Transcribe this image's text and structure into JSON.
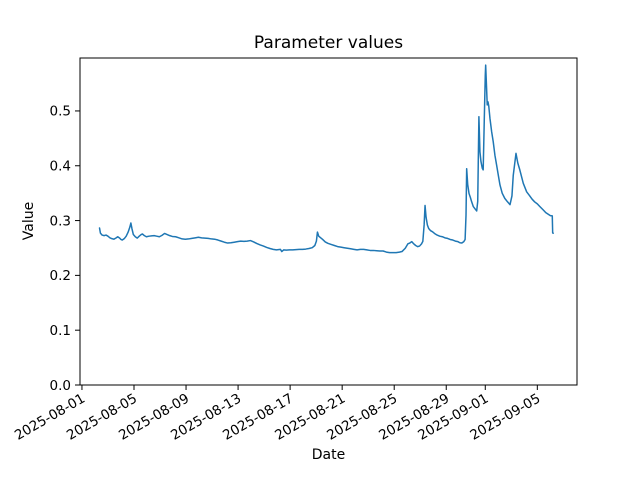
{
  "figure": {
    "title": "Parameter values",
    "xlabel": "Date",
    "ylabel": "Value"
  },
  "chart_data": {
    "type": "line",
    "title": "Parameter values",
    "xlabel": "Date",
    "ylabel": "Value",
    "grid": false,
    "legend": "none",
    "line_color": "#1f77b4",
    "line_width": 1.5,
    "x_axis": {
      "kind": "date",
      "base_date": "2025-08-01",
      "unit": "days_since_base_date",
      "lim": [
        -0.15,
        38.05
      ],
      "ticks": [
        {
          "pos": 0,
          "label": "2025-08-01"
        },
        {
          "pos": 4,
          "label": "2025-08-05"
        },
        {
          "pos": 8,
          "label": "2025-08-09"
        },
        {
          "pos": 12,
          "label": "2025-08-13"
        },
        {
          "pos": 16,
          "label": "2025-08-17"
        },
        {
          "pos": 20,
          "label": "2025-08-21"
        },
        {
          "pos": 24,
          "label": "2025-08-25"
        },
        {
          "pos": 28,
          "label": "2025-08-29"
        },
        {
          "pos": 31,
          "label": "2025-09-01"
        },
        {
          "pos": 35,
          "label": "2025-09-05"
        }
      ]
    },
    "y_axis": {
      "lim": [
        0.0,
        0.5966
      ],
      "ticks": [
        {
          "pos": 0.0,
          "label": "0.0"
        },
        {
          "pos": 0.1,
          "label": "0.1"
        },
        {
          "pos": 0.2,
          "label": "0.2"
        },
        {
          "pos": 0.3,
          "label": "0.3"
        },
        {
          "pos": 0.4,
          "label": "0.4"
        },
        {
          "pos": 0.5,
          "label": "0.5"
        }
      ]
    },
    "series": [
      {
        "name": "Parameter values",
        "color": "#1f77b4",
        "points": [
          [
            1.35,
            0.2865
          ],
          [
            1.42,
            0.277
          ],
          [
            1.55,
            0.2735
          ],
          [
            1.7,
            0.2725
          ],
          [
            1.85,
            0.2735
          ],
          [
            2.0,
            0.2715
          ],
          [
            2.15,
            0.2685
          ],
          [
            2.3,
            0.267
          ],
          [
            2.45,
            0.266
          ],
          [
            2.6,
            0.268
          ],
          [
            2.75,
            0.2705
          ],
          [
            2.9,
            0.268
          ],
          [
            3.0,
            0.2655
          ],
          [
            3.1,
            0.2645
          ],
          [
            3.25,
            0.267
          ],
          [
            3.4,
            0.2715
          ],
          [
            3.55,
            0.279
          ],
          [
            3.68,
            0.288
          ],
          [
            3.76,
            0.2955
          ],
          [
            3.85,
            0.2845
          ],
          [
            3.95,
            0.2745
          ],
          [
            4.1,
            0.2705
          ],
          [
            4.25,
            0.268
          ],
          [
            4.4,
            0.2715
          ],
          [
            4.55,
            0.2745
          ],
          [
            4.65,
            0.2755
          ],
          [
            4.8,
            0.2725
          ],
          [
            4.95,
            0.2705
          ],
          [
            5.15,
            0.2715
          ],
          [
            5.35,
            0.272
          ],
          [
            5.55,
            0.2725
          ],
          [
            5.75,
            0.2715
          ],
          [
            5.95,
            0.2705
          ],
          [
            6.15,
            0.273
          ],
          [
            6.35,
            0.2765
          ],
          [
            6.55,
            0.2745
          ],
          [
            6.75,
            0.2725
          ],
          [
            6.95,
            0.271
          ],
          [
            7.2,
            0.2705
          ],
          [
            7.45,
            0.2685
          ],
          [
            7.7,
            0.2665
          ],
          [
            7.95,
            0.266
          ],
          [
            8.2,
            0.2665
          ],
          [
            8.45,
            0.2675
          ],
          [
            8.7,
            0.2685
          ],
          [
            8.95,
            0.2695
          ],
          [
            9.2,
            0.2685
          ],
          [
            9.45,
            0.268
          ],
          [
            9.7,
            0.2675
          ],
          [
            9.95,
            0.2665
          ],
          [
            10.2,
            0.266
          ],
          [
            10.45,
            0.2645
          ],
          [
            10.7,
            0.2625
          ],
          [
            10.95,
            0.2605
          ],
          [
            11.2,
            0.259
          ],
          [
            11.45,
            0.2595
          ],
          [
            11.7,
            0.2605
          ],
          [
            11.95,
            0.2615
          ],
          [
            12.2,
            0.2625
          ],
          [
            12.45,
            0.262
          ],
          [
            12.7,
            0.2625
          ],
          [
            12.95,
            0.2635
          ],
          [
            13.2,
            0.261
          ],
          [
            13.45,
            0.258
          ],
          [
            13.7,
            0.2555
          ],
          [
            13.95,
            0.2535
          ],
          [
            14.2,
            0.251
          ],
          [
            14.45,
            0.249
          ],
          [
            14.7,
            0.2475
          ],
          [
            14.95,
            0.2465
          ],
          [
            15.1,
            0.247
          ],
          [
            15.25,
            0.2475
          ],
          [
            15.36,
            0.2435
          ],
          [
            15.5,
            0.2465
          ],
          [
            15.7,
            0.246
          ],
          [
            15.95,
            0.2465
          ],
          [
            16.2,
            0.2465
          ],
          [
            16.45,
            0.247
          ],
          [
            16.7,
            0.2475
          ],
          [
            16.95,
            0.2475
          ],
          [
            17.2,
            0.248
          ],
          [
            17.45,
            0.249
          ],
          [
            17.7,
            0.2505
          ],
          [
            17.9,
            0.2545
          ],
          [
            18.02,
            0.2625
          ],
          [
            18.1,
            0.279
          ],
          [
            18.2,
            0.2715
          ],
          [
            18.35,
            0.2685
          ],
          [
            18.5,
            0.2655
          ],
          [
            18.7,
            0.261
          ],
          [
            18.9,
            0.2585
          ],
          [
            19.15,
            0.2565
          ],
          [
            19.4,
            0.2545
          ],
          [
            19.65,
            0.2525
          ],
          [
            19.9,
            0.2515
          ],
          [
            20.15,
            0.2505
          ],
          [
            20.4,
            0.2495
          ],
          [
            20.65,
            0.2485
          ],
          [
            20.9,
            0.2475
          ],
          [
            21.15,
            0.2465
          ],
          [
            21.4,
            0.2475
          ],
          [
            21.65,
            0.2475
          ],
          [
            21.9,
            0.2465
          ],
          [
            22.15,
            0.2455
          ],
          [
            22.4,
            0.2455
          ],
          [
            22.65,
            0.245
          ],
          [
            22.9,
            0.2445
          ],
          [
            23.15,
            0.2445
          ],
          [
            23.4,
            0.2425
          ],
          [
            23.65,
            0.2415
          ],
          [
            23.9,
            0.2415
          ],
          [
            24.15,
            0.2415
          ],
          [
            24.4,
            0.2425
          ],
          [
            24.6,
            0.2435
          ],
          [
            24.85,
            0.2495
          ],
          [
            25.05,
            0.2575
          ],
          [
            25.2,
            0.259
          ],
          [
            25.35,
            0.2615
          ],
          [
            25.5,
            0.2575
          ],
          [
            25.65,
            0.2545
          ],
          [
            25.8,
            0.2525
          ],
          [
            25.95,
            0.2535
          ],
          [
            26.1,
            0.2575
          ],
          [
            26.2,
            0.262
          ],
          [
            26.3,
            0.292
          ],
          [
            26.37,
            0.3275
          ],
          [
            26.45,
            0.306
          ],
          [
            26.55,
            0.292
          ],
          [
            26.65,
            0.2855
          ],
          [
            26.8,
            0.2815
          ],
          [
            26.95,
            0.2795
          ],
          [
            27.1,
            0.2765
          ],
          [
            27.3,
            0.2735
          ],
          [
            27.5,
            0.2715
          ],
          [
            27.7,
            0.2705
          ],
          [
            27.9,
            0.2685
          ],
          [
            28.1,
            0.2675
          ],
          [
            28.3,
            0.2655
          ],
          [
            28.5,
            0.2645
          ],
          [
            28.7,
            0.2625
          ],
          [
            28.9,
            0.2615
          ],
          [
            29.05,
            0.2595
          ],
          [
            29.2,
            0.259
          ],
          [
            29.35,
            0.2615
          ],
          [
            29.45,
            0.2655
          ],
          [
            29.52,
            0.31
          ],
          [
            29.57,
            0.3945
          ],
          [
            29.65,
            0.3655
          ],
          [
            29.75,
            0.3495
          ],
          [
            29.85,
            0.3425
          ],
          [
            29.95,
            0.3345
          ],
          [
            30.08,
            0.3255
          ],
          [
            30.21,
            0.3215
          ],
          [
            30.34,
            0.3175
          ],
          [
            30.42,
            0.335
          ],
          [
            30.51,
            0.4895
          ],
          [
            30.59,
            0.4255
          ],
          [
            30.67,
            0.4075
          ],
          [
            30.77,
            0.3955
          ],
          [
            30.84,
            0.3925
          ],
          [
            30.92,
            0.4805
          ],
          [
            31.0,
            0.5655
          ],
          [
            31.03,
            0.5835
          ],
          [
            31.1,
            0.5415
          ],
          [
            31.15,
            0.511
          ],
          [
            31.21,
            0.5165
          ],
          [
            31.27,
            0.5085
          ],
          [
            31.36,
            0.4865
          ],
          [
            31.49,
            0.462
          ],
          [
            31.61,
            0.444
          ],
          [
            31.74,
            0.4195
          ],
          [
            31.87,
            0.4015
          ],
          [
            32.0,
            0.383
          ],
          [
            32.13,
            0.365
          ],
          [
            32.3,
            0.35
          ],
          [
            32.5,
            0.3405
          ],
          [
            32.7,
            0.3345
          ],
          [
            32.9,
            0.329
          ],
          [
            33.05,
            0.345
          ],
          [
            33.15,
            0.3825
          ],
          [
            33.36,
            0.4225
          ],
          [
            33.5,
            0.405
          ],
          [
            33.66,
            0.392
          ],
          [
            33.92,
            0.368
          ],
          [
            34.18,
            0.3525
          ],
          [
            34.42,
            0.345
          ],
          [
            34.6,
            0.339
          ],
          [
            34.8,
            0.334
          ],
          [
            35.0,
            0.3305
          ],
          [
            35.2,
            0.3255
          ],
          [
            35.45,
            0.3195
          ],
          [
            35.65,
            0.3145
          ],
          [
            35.84,
            0.3115
          ],
          [
            36.0,
            0.309
          ],
          [
            36.15,
            0.3085
          ],
          [
            36.18,
            0.2775
          ],
          [
            36.22,
            0.277
          ]
        ]
      }
    ]
  }
}
